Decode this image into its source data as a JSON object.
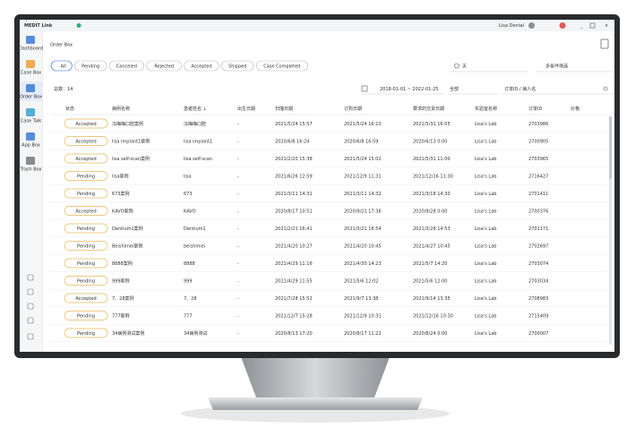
{
  "title_bar": {
    "app": "MEDIT Link",
    "user": "Lisa Dental"
  },
  "sidebar": [
    "Dashboard",
    "Case Box",
    "Order Box",
    "Case Talk",
    "App Box",
    "Trash Box"
  ],
  "page_title": "Order Box",
  "filters": [
    "All",
    "Pending",
    "Canceled",
    "Rejected",
    "Accepted",
    "Shipped",
    "Case Completed"
  ],
  "sort_label": "天",
  "filter_label": "多条件筛选",
  "total": "总数：14",
  "date_range": "2018-01-01 ~ 2022-01-25",
  "scope": "全部",
  "search_placeholder": "订单ID / 病人名",
  "table": {
    "columns": [
      "状态",
      "病例名称",
      "患者姓名 ↓",
      "出生日期",
      "扫描日期",
      "订购日期",
      "要求的交货日期",
      "实验室名称",
      "订单ID",
      "价格"
    ],
    "rows": [
      [
        "Accepted",
        "冯梅梅口腔案例",
        "冯梅梅口腔",
        "-",
        "2021/5/24 15:57",
        "2021/5/24 16:10",
        "2021/5/31 16:05",
        "Lisa's Lab",
        "2703986"
      ],
      [
        "Accepted",
        "lisa implant1案例",
        "lisa implant1",
        "-",
        "2020/6/8 16:24",
        "2020/6/8 16:59",
        "2020/6/13 0:00",
        "Lisa's Lab",
        "2700905"
      ],
      [
        "Accepted",
        "lisa self-scan案例",
        "lisa self-scan",
        "-",
        "2021/2/20 15:38",
        "2021/5/24 15:02",
        "2021/5/31 11:00",
        "Lisa's Lab",
        "2703965"
      ],
      [
        "Pending",
        "lisa案例",
        "lisa",
        "-",
        "2021/6/26 12:59",
        "2021/12/9 11:31",
        "2021/12/16 11:30",
        "Lisa's Lab",
        "2716427"
      ],
      [
        "Pending",
        "673案例",
        "673",
        "-",
        "2021/3/11 14:31",
        "2021/3/11 14:32",
        "2021/3/18 14:30",
        "Lisa's Lab",
        "2701411"
      ],
      [
        "Accepted",
        "KAVO案例",
        "KAVO",
        "-",
        "2020/8/17 10:51",
        "2020/9/21 17:36",
        "2020/9/28 0:00",
        "Lisa's Lab",
        "2700376"
      ],
      [
        "Pending",
        "Dentium1案例",
        "Dentium1",
        "-",
        "2021/2/21 16:41",
        "2021/3/21 16:54",
        "2021/3/28 14:53",
        "Lisa's Lab",
        "2701171"
      ],
      [
        "Pending",
        "Beishimei案例",
        "beishimei",
        "-",
        "2021/4/20 10:27",
        "2021/4/20 10:45",
        "2021/4/27 10:45",
        "Lisa's Lab",
        "2702697"
      ],
      [
        "Pending",
        "8888案例",
        "8888",
        "-",
        "2021/4/29 11:16",
        "2021/4/30 14:23",
        "2021/5/7 14:20",
        "Lisa's Lab",
        "2703074"
      ],
      [
        "Pending",
        "999案例",
        "999",
        "-",
        "2021/4/29 11:55",
        "2021/5/6 12:02",
        "2021/5/6 12:00",
        "Lisa's Lab",
        "2703034"
      ],
      [
        "Accepted",
        "7、28案例",
        "7、28",
        "-",
        "2021/7/28 15:52",
        "2021/9/7 13:38",
        "2021/9/14 13:35",
        "Lisa's Lab",
        "2708983"
      ],
      [
        "Pending",
        "777案例",
        "777",
        "-",
        "2021/12/7 15:28",
        "2021/12/9 10:31",
        "2021/12/16 10:30",
        "Lisa's Lab",
        "2715409"
      ],
      [
        "Pending",
        "34病例测试案例",
        "34病例测试",
        "-",
        "2020/8/13 17:20",
        "2020/8/17 11:22",
        "2020/8/24 0:00",
        "Lisa's Lab",
        "2700007"
      ]
    ]
  }
}
